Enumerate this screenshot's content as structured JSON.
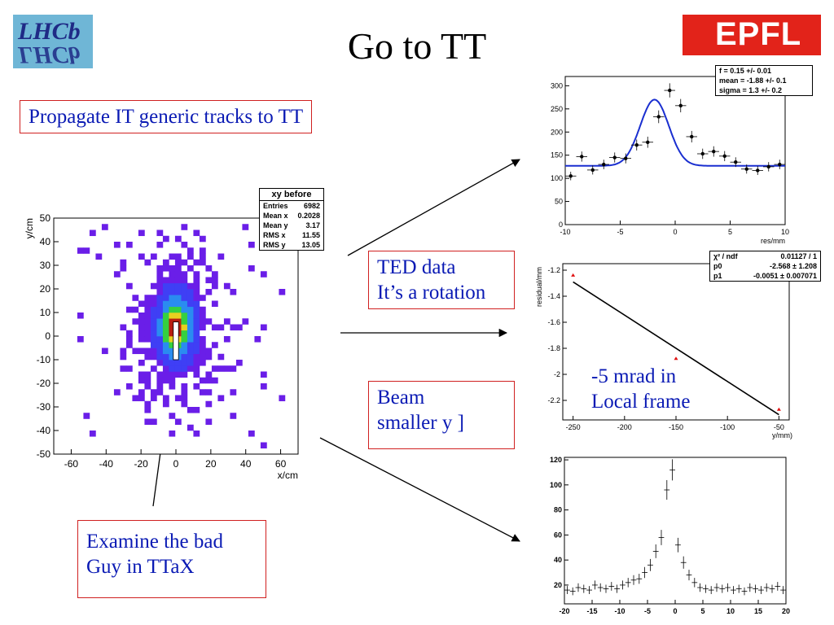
{
  "slide": {
    "title": "Go to TT",
    "lhcb_logo_text": "LHCb",
    "epfl_logo_text": "EPFL",
    "boxes": {
      "propagate": "Propagate IT generic tracks to TT",
      "ted_line1": "TED data",
      "ted_line2": "It’s a rotation",
      "beam_line1": "Beam",
      "beam_line2": "smaller y ]",
      "examine_line1": "Examine the bad",
      "examine_line2": "Guy in TTaX",
      "mrad_line1": "-5 mrad in",
      "mrad_line2": "Local frame"
    },
    "colors": {
      "text_blue": "#0a1ab4",
      "box_border": "#d02020",
      "fit_blue": "#1a2fd0",
      "hist_purple": "#6a1ee8"
    }
  },
  "chart_data": [
    {
      "id": "xy_before",
      "type": "heatmap",
      "title": "xy before",
      "xlabel": "x/cm",
      "ylabel": "y/cm",
      "xlim": [
        -70,
        70
      ],
      "ylim": [
        -50,
        50
      ],
      "x_ticks": [
        "-60",
        "-40",
        "-20",
        "0",
        "20",
        "40",
        "60"
      ],
      "y_ticks": [
        "50",
        "40",
        "30",
        "20",
        "10",
        "0",
        "-10",
        "-20",
        "-30",
        "-40",
        "-50"
      ],
      "stats": [
        {
          "label": "Entries",
          "value": "6982"
        },
        {
          "label": "Mean x",
          "value": "0.2028"
        },
        {
          "label": "Mean y",
          "value": "3.17"
        },
        {
          "label": "RMS x",
          "value": "11.55"
        },
        {
          "label": "RMS y",
          "value": "13.05"
        }
      ]
    },
    {
      "id": "res_fit",
      "type": "scatter",
      "xlabel": "res/mm",
      "xlim": [
        -10,
        10
      ],
      "ylim": [
        0,
        320
      ],
      "x_ticks": [
        "-10",
        "-5",
        "0",
        "5",
        "10"
      ],
      "y_ticks": [
        "0",
        "50",
        "100",
        "150",
        "200",
        "250",
        "300"
      ],
      "fit": {
        "f": "0.15 +/- 0.01",
        "mean": "-1.88 +/- 0.1",
        "sigma": "1.3 +/- 0.2"
      },
      "fit_labels": [
        "f = ",
        "mean = ",
        "sigma = "
      ],
      "x": [
        -9.5,
        -8.5,
        -7.5,
        -6.5,
        -5.5,
        -4.5,
        -3.5,
        -2.5,
        -1.5,
        -0.5,
        0.5,
        1.5,
        2.5,
        3.5,
        4.5,
        5.5,
        6.5,
        7.5,
        8.5,
        9.5
      ],
      "values": [
        105,
        147,
        118,
        130,
        145,
        143,
        172,
        178,
        233,
        290,
        257,
        190,
        153,
        158,
        148,
        135,
        120,
        117,
        125,
        130
      ],
      "curve_baseline": 127,
      "curve_peak": 270,
      "curve_mean": -1.88,
      "curve_sigma": 1.3
    },
    {
      "id": "residual_line",
      "type": "line",
      "xlabel": "y/mm)",
      "ylabel": "residual/mm",
      "xlim": [
        -260,
        -40
      ],
      "ylim": [
        -2.35,
        -1.15
      ],
      "x_ticks": [
        "-250",
        "-200",
        "-150",
        "-100",
        "-50"
      ],
      "y_ticks": [
        "-1.2",
        "-1.4",
        "-1.6",
        "-1.8",
        "-2",
        "-2.2"
      ],
      "fit": {
        "chi2_ndf": "0.01127 / 1",
        "p0": "-2.568 ± 1.208",
        "p1": "-0.0051 ± 0.007071"
      },
      "fit_labels": [
        "χ² / ndf",
        "p0",
        "p1"
      ],
      "x": [
        -250,
        -150,
        -50
      ],
      "values": [
        -1.24,
        -1.88,
        -2.27
      ],
      "line_x": [
        -250,
        -50
      ],
      "line_y": [
        -1.29,
        -2.31
      ]
    },
    {
      "id": "res_hist",
      "type": "scatter",
      "xlim": [
        -20,
        20
      ],
      "ylim": [
        5,
        122
      ],
      "x_ticks": [
        "-20",
        "-15",
        "-10",
        "-5",
        "0",
        "5",
        "10",
        "15",
        "20"
      ],
      "y_ticks": [
        "20",
        "40",
        "60",
        "80",
        "100",
        "120"
      ],
      "x": [
        -19.5,
        -18.5,
        -17.5,
        -16.5,
        -15.5,
        -14.5,
        -13.5,
        -12.5,
        -11.5,
        -10.5,
        -9.5,
        -8.5,
        -7.5,
        -6.5,
        -5.5,
        -4.5,
        -3.5,
        -2.5,
        -1.5,
        -0.5,
        0.5,
        1.5,
        2.5,
        3.5,
        4.5,
        5.5,
        6.5,
        7.5,
        8.5,
        9.5,
        10.5,
        11.5,
        12.5,
        13.5,
        14.5,
        15.5,
        16.5,
        17.5,
        18.5,
        19.5
      ],
      "values": [
        16,
        15,
        18,
        17,
        16,
        20,
        18,
        17,
        19,
        17,
        20,
        22,
        24,
        25,
        30,
        36,
        47,
        58,
        96,
        112,
        52,
        38,
        28,
        22,
        18,
        17,
        16,
        18,
        17,
        18,
        16,
        17,
        15,
        18,
        17,
        16,
        18,
        17,
        19,
        16
      ]
    }
  ]
}
